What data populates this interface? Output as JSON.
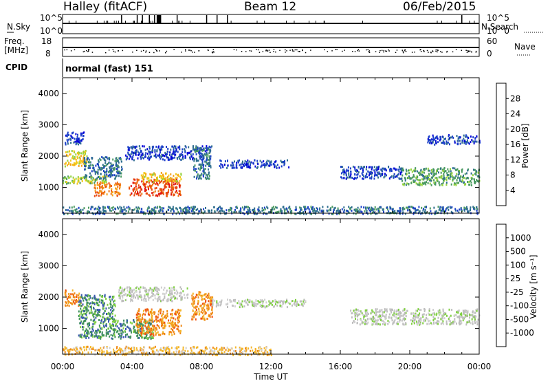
{
  "header": {
    "title": "Halley (fitACF)",
    "beam": "Beam 12",
    "date": "06/Feb/2015"
  },
  "panels": {
    "nsky_label": "N.Sky",
    "nsearch_label": "N.Search",
    "noise_ticks": [
      "10^5",
      "10^0"
    ],
    "freq_label_1": "Freq.",
    "freq_label_2": "[MHz]",
    "freq_ticks": [
      "18",
      "8"
    ],
    "nave_label": "Nave",
    "nave_ticks": [
      "60",
      "0"
    ],
    "cpid_label": "CPID",
    "cpid_value": "normal (fast) 151"
  },
  "colors": {
    "power_scale": [
      "#0000d8",
      "#1a3fc8",
      "#2e6e8e",
      "#4a9a60",
      "#93d23c",
      "#f2c818",
      "#f4a018",
      "#f07414",
      "#e84a10",
      "#e01010"
    ],
    "velocity_scale": [
      "#e01010",
      "#ee5012",
      "#f08a18",
      "#f4b62a",
      "#cfcfcf",
      "#bdbdbd",
      "#7fd040",
      "#3e8f5a",
      "#3a58b0",
      "#1a2ab4"
    ]
  },
  "chart_data": [
    {
      "type": "heatmap",
      "name": "power",
      "ylabel": "Slant Range [km]",
      "y_ticks": [
        1000,
        2000,
        3000,
        4000
      ],
      "ylim": [
        180,
        4500
      ],
      "xlim": [
        0,
        24
      ],
      "colorbar_label": "Power [dB]",
      "colorbar_ticks": [
        "4",
        "8",
        "12",
        "16",
        "20",
        "24",
        "28"
      ],
      "regions": [
        {
          "t0": 0.0,
          "t1": 2.6,
          "r0": 1150,
          "r1": 1400,
          "level": 4
        },
        {
          "t0": 0.1,
          "t1": 1.4,
          "r0": 1700,
          "r1": 2200,
          "level": 5
        },
        {
          "t0": 0.1,
          "t1": 1.2,
          "r0": 2400,
          "r1": 2800,
          "level": 1
        },
        {
          "t0": 1.2,
          "t1": 3.4,
          "r0": 1300,
          "r1": 2000,
          "level": 2
        },
        {
          "t0": 1.8,
          "t1": 3.3,
          "r0": 750,
          "r1": 1200,
          "level": 7
        },
        {
          "t0": 3.8,
          "t1": 6.8,
          "r0": 750,
          "r1": 1300,
          "level": 8
        },
        {
          "t0": 4.5,
          "t1": 6.8,
          "r0": 1200,
          "r1": 1500,
          "level": 5
        },
        {
          "t0": 3.6,
          "t1": 8.6,
          "r0": 1900,
          "r1": 2350,
          "level": 1
        },
        {
          "t0": 7.5,
          "t1": 8.5,
          "r0": 1300,
          "r1": 2300,
          "level": 2
        },
        {
          "t0": 9.0,
          "t1": 13.0,
          "r0": 1650,
          "r1": 1900,
          "level": 1
        },
        {
          "t0": 16.0,
          "t1": 19.5,
          "r0": 1300,
          "r1": 1700,
          "level": 1
        },
        {
          "t0": 19.5,
          "t1": 24.0,
          "r0": 1100,
          "r1": 1650,
          "level": 3
        },
        {
          "t0": 21.0,
          "t1": 24.0,
          "r0": 2400,
          "r1": 2700,
          "level": 1
        },
        {
          "t0": 0.0,
          "t1": 24.0,
          "r0": 180,
          "r1": 420,
          "level": 2
        }
      ]
    },
    {
      "type": "heatmap",
      "name": "velocity",
      "ylabel": "Slant Range [km]",
      "y_ticks": [
        1000,
        2000,
        3000,
        4000
      ],
      "ylim": [
        180,
        4500
      ],
      "xlim": [
        0,
        24
      ],
      "x_ticks": [
        "00:00",
        "04:00",
        "08:00",
        "12:00",
        "16:00",
        "20:00",
        "00:00"
      ],
      "xlabel": "Time UT",
      "colorbar_label": "Velocity [m s⁻¹]",
      "colorbar_ticks": [
        "-1000",
        "-500",
        "-100",
        "-25",
        "25",
        "100",
        "500",
        "1000"
      ],
      "regions": [
        {
          "t0": 0.1,
          "t1": 1.1,
          "r0": 1750,
          "r1": 2250,
          "level": 2
        },
        {
          "t0": 0.9,
          "t1": 3.0,
          "r0": 700,
          "r1": 2100,
          "level": 7
        },
        {
          "t0": 3.0,
          "t1": 5.2,
          "r0": 700,
          "r1": 1300,
          "level": 7
        },
        {
          "t0": 4.2,
          "t1": 6.8,
          "r0": 800,
          "r1": 1650,
          "level": 2
        },
        {
          "t0": 3.2,
          "t1": 7.2,
          "r0": 1900,
          "r1": 2350,
          "level": 5
        },
        {
          "t0": 7.4,
          "t1": 8.6,
          "r0": 1300,
          "r1": 2200,
          "level": 2
        },
        {
          "t0": 8.6,
          "t1": 14.0,
          "r0": 1700,
          "r1": 1950,
          "level": 5
        },
        {
          "t0": 16.5,
          "t1": 24.0,
          "r0": 1150,
          "r1": 1650,
          "level": 5
        },
        {
          "t0": 0.0,
          "t1": 12.0,
          "r0": 180,
          "r1": 450,
          "level": 3
        }
      ]
    }
  ]
}
